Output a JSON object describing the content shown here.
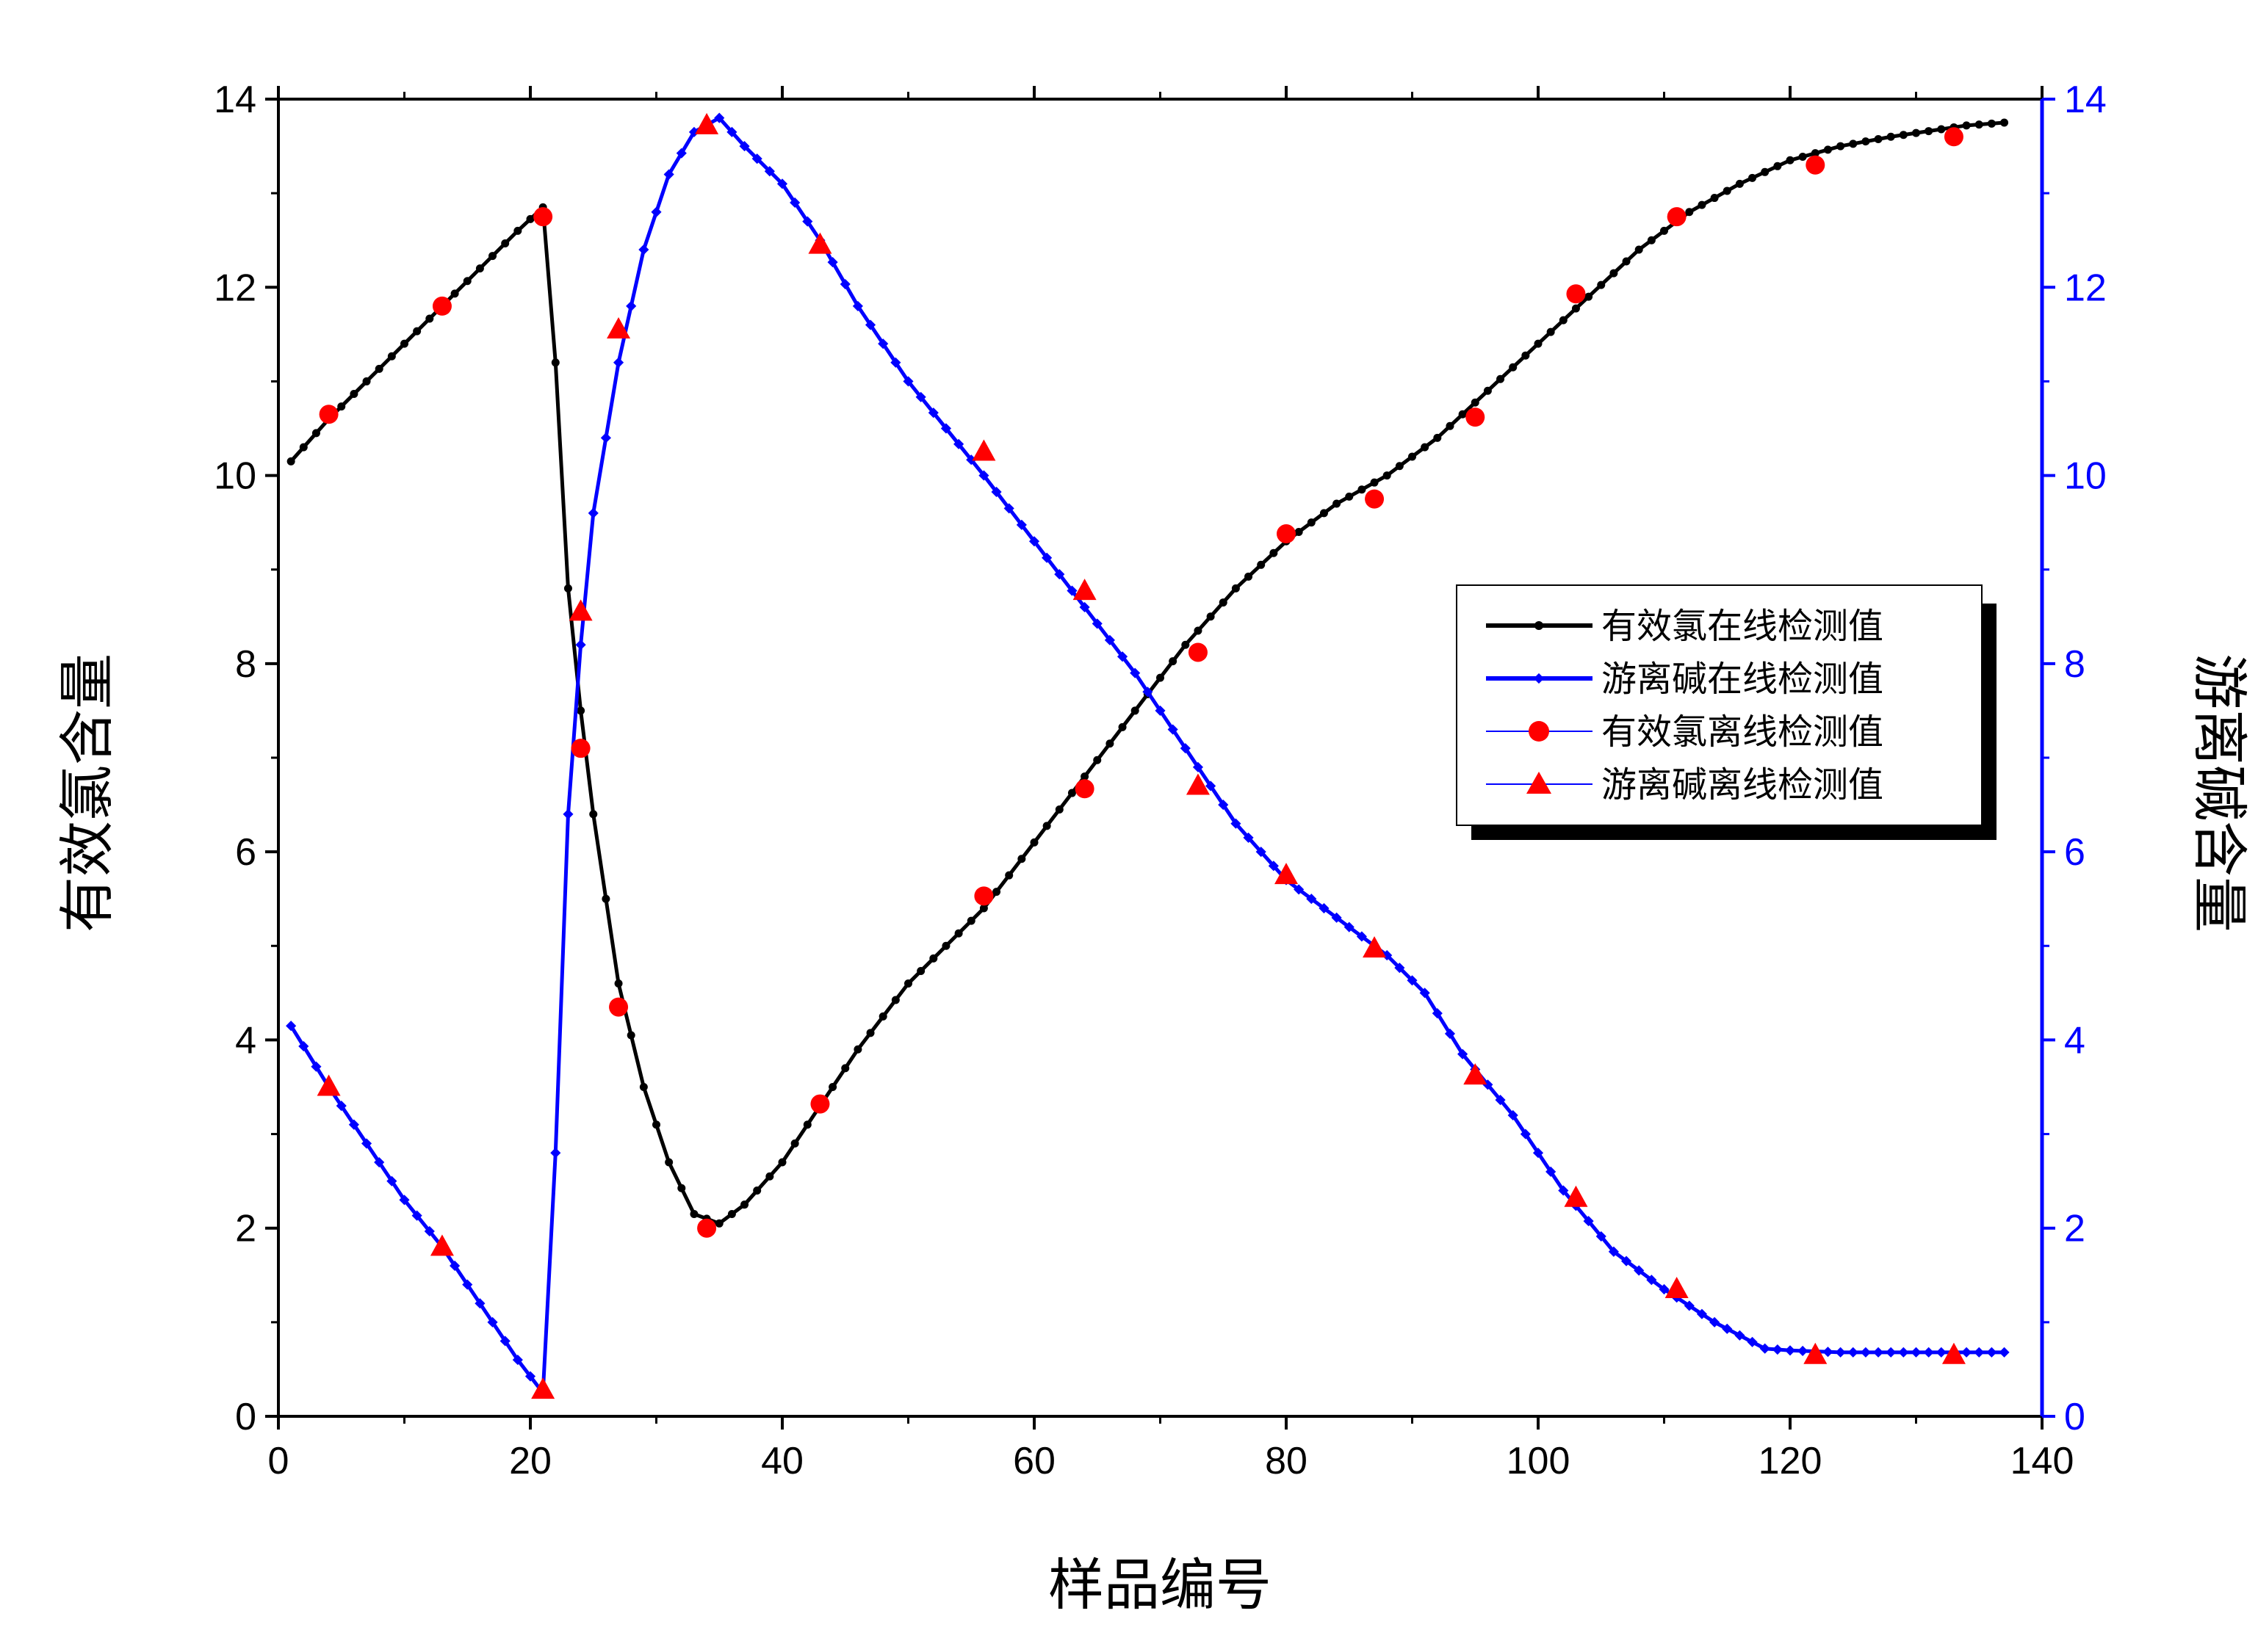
{
  "chart_data": {
    "type": "line",
    "title": "",
    "xlabel": "样品编号",
    "ylabel_left": "有效氯含量",
    "ylabel_right": "游离碱含量",
    "xlim": [
      0,
      140
    ],
    "ylim_left": [
      0,
      14
    ],
    "ylim_right": [
      0,
      14
    ],
    "x_ticks": [
      0,
      20,
      40,
      60,
      80,
      100,
      120,
      140
    ],
    "y_ticks": [
      0,
      2,
      4,
      6,
      8,
      10,
      12,
      14
    ],
    "legend_position": "center-right",
    "grid": false,
    "colors": {
      "axis": "#000000",
      "right_axis": "#0000ff",
      "chlorine": "#000000",
      "alkali": "#0000ff",
      "offline_marker": "#ff0000"
    },
    "series": [
      {
        "name": "有效氯在线检测值",
        "style": "line-dots",
        "axis": "left",
        "x": [
          1,
          4,
          7,
          10,
          13,
          16,
          19,
          21,
          22,
          23,
          24,
          25,
          27,
          29,
          31,
          33,
          35,
          37,
          40,
          43,
          46,
          50,
          53,
          56,
          60,
          64,
          68,
          72,
          76,
          80,
          84,
          88,
          92,
          96,
          100,
          104,
          108,
          112,
          116,
          120,
          124,
          128,
          132,
          134,
          137
        ],
        "y": [
          10.15,
          10.6,
          11.0,
          11.4,
          11.8,
          12.2,
          12.6,
          12.85,
          11.2,
          8.8,
          7.5,
          6.4,
          4.6,
          3.5,
          2.7,
          2.15,
          2.05,
          2.25,
          2.7,
          3.3,
          3.9,
          4.6,
          5.0,
          5.4,
          6.1,
          6.8,
          7.5,
          8.2,
          8.8,
          9.3,
          9.7,
          10.0,
          10.4,
          10.9,
          11.4,
          11.9,
          12.4,
          12.8,
          13.1,
          13.35,
          13.5,
          13.6,
          13.68,
          13.72,
          13.75
        ]
      },
      {
        "name": "游离碱在线检测值",
        "style": "line-dots",
        "axis": "right",
        "x": [
          1,
          4,
          7,
          10,
          13,
          16,
          19,
          21,
          22,
          23,
          24,
          25,
          27,
          29,
          31,
          33,
          35,
          37,
          40,
          43,
          46,
          50,
          53,
          56,
          60,
          64,
          68,
          72,
          76,
          80,
          84,
          88,
          91,
          94,
          98,
          102,
          106,
          110,
          114,
          118,
          120,
          124,
          128,
          132,
          137
        ],
        "y": [
          4.15,
          3.5,
          2.9,
          2.3,
          1.8,
          1.2,
          0.6,
          0.25,
          2.8,
          6.4,
          8.2,
          9.6,
          11.2,
          12.4,
          13.2,
          13.65,
          13.8,
          13.5,
          13.1,
          12.5,
          11.8,
          11.0,
          10.5,
          10.0,
          9.3,
          8.6,
          7.9,
          7.1,
          6.3,
          5.7,
          5.3,
          4.9,
          4.5,
          3.85,
          3.2,
          2.4,
          1.75,
          1.35,
          1.0,
          0.72,
          0.7,
          0.68,
          0.68,
          0.68,
          0.68
        ]
      },
      {
        "name": "有效氯离线检测值",
        "style": "circle",
        "axis": "left",
        "x": [
          4,
          13,
          21,
          24,
          27,
          34,
          43,
          56,
          64,
          73,
          80,
          87,
          95,
          103,
          111,
          122,
          133
        ],
        "y": [
          10.65,
          11.8,
          12.75,
          7.1,
          4.35,
          2.0,
          3.32,
          5.53,
          6.67,
          8.12,
          9.38,
          9.75,
          10.62,
          11.93,
          12.75,
          13.3,
          13.6
        ]
      },
      {
        "name": "游离碱离线检测值",
        "style": "triangle",
        "axis": "right",
        "x": [
          4,
          13,
          21,
          24,
          27,
          34,
          43,
          56,
          64,
          73,
          80,
          87,
          95,
          103,
          111,
          122,
          133
        ],
        "y": [
          3.5,
          1.8,
          0.28,
          8.55,
          11.55,
          13.72,
          12.45,
          10.25,
          8.77,
          6.7,
          5.75,
          4.97,
          3.62,
          2.32,
          1.35,
          0.65,
          0.65
        ]
      }
    ]
  }
}
